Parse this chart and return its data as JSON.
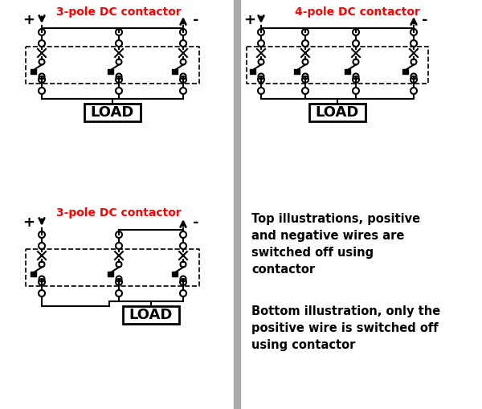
{
  "bg_color": "#ffffff",
  "divider_color": "#aaaaaa",
  "text_color": "#000000",
  "red_color": "#ff0000",
  "label_top_left": "3-pole DC contactor",
  "label_top_right": "4-pole DC contactor",
  "label_bottom_left": "3-pole DC contactor",
  "text_top_right": "Top illustrations, positive\nand negative wires are\nswitched off using\ncontactor",
  "text_bottom_right": "Bottom illustration, only the\npositive wire is switched off\nusing contactor"
}
